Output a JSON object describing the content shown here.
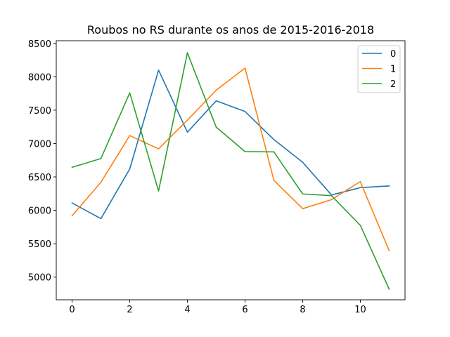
{
  "chart_data": {
    "type": "line",
    "title": "Roubos no RS durante os anos de 2015-2016-2018",
    "xlabel": "",
    "ylabel": "",
    "x": [
      0,
      1,
      2,
      3,
      4,
      5,
      6,
      7,
      8,
      9,
      10,
      11
    ],
    "xlim": [
      -0.55,
      11.55
    ],
    "ylim": [
      4660,
      8540
    ],
    "xticks": [
      0,
      2,
      4,
      6,
      8,
      10
    ],
    "yticks": [
      5000,
      5500,
      6000,
      6500,
      7000,
      7500,
      8000,
      8500
    ],
    "grid": false,
    "legend_position": "top-right",
    "series": [
      {
        "name": "0",
        "color": "#1f77b4",
        "values": [
          6110,
          5875,
          6620,
          8100,
          7170,
          7640,
          7480,
          7060,
          6720,
          6230,
          6340,
          6365
        ]
      },
      {
        "name": "1",
        "color": "#ff7f0e",
        "values": [
          5920,
          6420,
          7120,
          6920,
          7350,
          7800,
          8130,
          6450,
          6025,
          6160,
          6430,
          5395
        ]
      },
      {
        "name": "2",
        "color": "#2ca02c",
        "values": [
          6645,
          6775,
          7760,
          6290,
          8360,
          7245,
          6880,
          6875,
          6245,
          6220,
          5775,
          4820
        ]
      }
    ]
  }
}
